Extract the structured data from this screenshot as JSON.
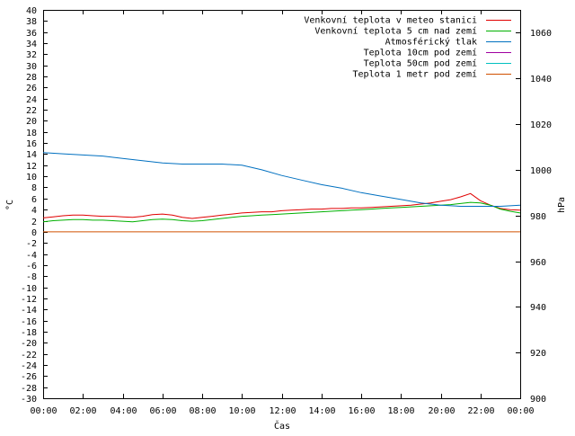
{
  "chart_data": {
    "type": "line",
    "xlabel": "Čas",
    "ylabel_left": "°C",
    "ylabel_right": "hPa",
    "x_ticks": [
      "00:00",
      "02:00",
      "04:00",
      "06:00",
      "08:00",
      "10:00",
      "12:00",
      "14:00",
      "16:00",
      "18:00",
      "20:00",
      "22:00",
      "00:00"
    ],
    "x_range_hours": [
      0,
      24
    ],
    "y_left_range": [
      -30,
      40
    ],
    "y_left_ticks": [
      40,
      38,
      36,
      34,
      32,
      30,
      28,
      26,
      24,
      22,
      20,
      18,
      16,
      14,
      12,
      10,
      8,
      6,
      4,
      2,
      0,
      -2,
      -4,
      -6,
      -8,
      -10,
      -12,
      -14,
      -16,
      -18,
      -20,
      -22,
      -24,
      -26,
      -28,
      -30
    ],
    "y_right_range": [
      900,
      1070
    ],
    "y_right_ticks": [
      1060,
      1040,
      1020,
      1000,
      980,
      960,
      940,
      920,
      900
    ],
    "legend_position": "top-right",
    "series": [
      {
        "name": "Venkovní teplota v meteo stanici",
        "axis": "left",
        "color": "#e00000",
        "x": [
          0,
          0.5,
          1,
          1.5,
          2,
          2.5,
          3,
          3.5,
          4,
          4.5,
          5,
          5.5,
          6,
          6.5,
          7,
          7.5,
          8,
          8.5,
          9,
          9.5,
          10,
          10.5,
          11,
          11.5,
          12,
          12.5,
          13,
          13.5,
          14,
          14.5,
          15,
          15.5,
          16,
          16.5,
          17,
          17.5,
          18,
          18.5,
          19,
          19.5,
          20,
          20.5,
          21,
          21.5,
          22,
          22.5,
          23,
          23.5,
          24
        ],
        "values": [
          2.5,
          2.7,
          2.9,
          3.0,
          3.0,
          2.9,
          2.8,
          2.8,
          2.7,
          2.6,
          2.8,
          3.1,
          3.2,
          3.0,
          2.6,
          2.4,
          2.6,
          2.8,
          3.0,
          3.2,
          3.4,
          3.5,
          3.6,
          3.6,
          3.8,
          3.9,
          4.0,
          4.1,
          4.1,
          4.2,
          4.2,
          4.3,
          4.3,
          4.4,
          4.5,
          4.6,
          4.7,
          4.8,
          5.0,
          5.2,
          5.5,
          5.8,
          6.3,
          6.9,
          5.6,
          4.8,
          4.2,
          4.0,
          3.9
        ]
      },
      {
        "name": "Venkovní teplota 5 cm nad zemí",
        "axis": "left",
        "color": "#00b000",
        "x": [
          0,
          0.5,
          1,
          1.5,
          2,
          2.5,
          3,
          3.5,
          4,
          4.5,
          5,
          5.5,
          6,
          6.5,
          7,
          7.5,
          8,
          8.5,
          9,
          9.5,
          10,
          10.5,
          11,
          11.5,
          12,
          12.5,
          13,
          13.5,
          14,
          14.5,
          15,
          15.5,
          16,
          16.5,
          17,
          17.5,
          18,
          18.5,
          19,
          19.5,
          20,
          20.5,
          21,
          21.5,
          22,
          22.5,
          23,
          23.5,
          24
        ],
        "values": [
          1.8,
          2.0,
          2.1,
          2.2,
          2.2,
          2.1,
          2.1,
          2.0,
          1.9,
          1.8,
          2.0,
          2.2,
          2.3,
          2.2,
          2.0,
          1.9,
          2.0,
          2.2,
          2.4,
          2.6,
          2.8,
          2.9,
          3.0,
          3.1,
          3.2,
          3.3,
          3.4,
          3.5,
          3.6,
          3.7,
          3.8,
          3.9,
          4.0,
          4.1,
          4.2,
          4.3,
          4.4,
          4.5,
          4.6,
          4.7,
          4.8,
          4.9,
          5.1,
          5.3,
          5.2,
          4.8,
          4.1,
          3.7,
          3.4
        ]
      },
      {
        "name": "Atmosférický tlak",
        "axis": "right",
        "color": "#0070c0",
        "x": [
          0,
          1,
          2,
          3,
          4,
          5,
          6,
          7,
          8,
          9,
          10,
          11,
          12,
          13,
          14,
          15,
          16,
          17,
          18,
          19,
          20,
          21,
          22,
          23,
          24
        ],
        "values": [
          1007.5,
          1007,
          1006.5,
          1006,
          1005,
          1004,
          1003,
          1002.5,
          1002.5,
          1002.5,
          1002,
          1000,
          997.5,
          995.5,
          993.5,
          992,
          990,
          988.5,
          987,
          985.5,
          984.5,
          984,
          984,
          984,
          984.5
        ]
      },
      {
        "name": "Teplota 10cm pod zemí",
        "axis": "left",
        "color": "#a000a0",
        "x": [],
        "values": []
      },
      {
        "name": "Teplota 50cm pod zemí",
        "axis": "left",
        "color": "#00c0c0",
        "x": [],
        "values": []
      },
      {
        "name": "Teplota 1 metr pod zemí",
        "axis": "left",
        "color": "#d05000",
        "x": [
          0,
          24
        ],
        "values": [
          0,
          0
        ]
      }
    ]
  }
}
